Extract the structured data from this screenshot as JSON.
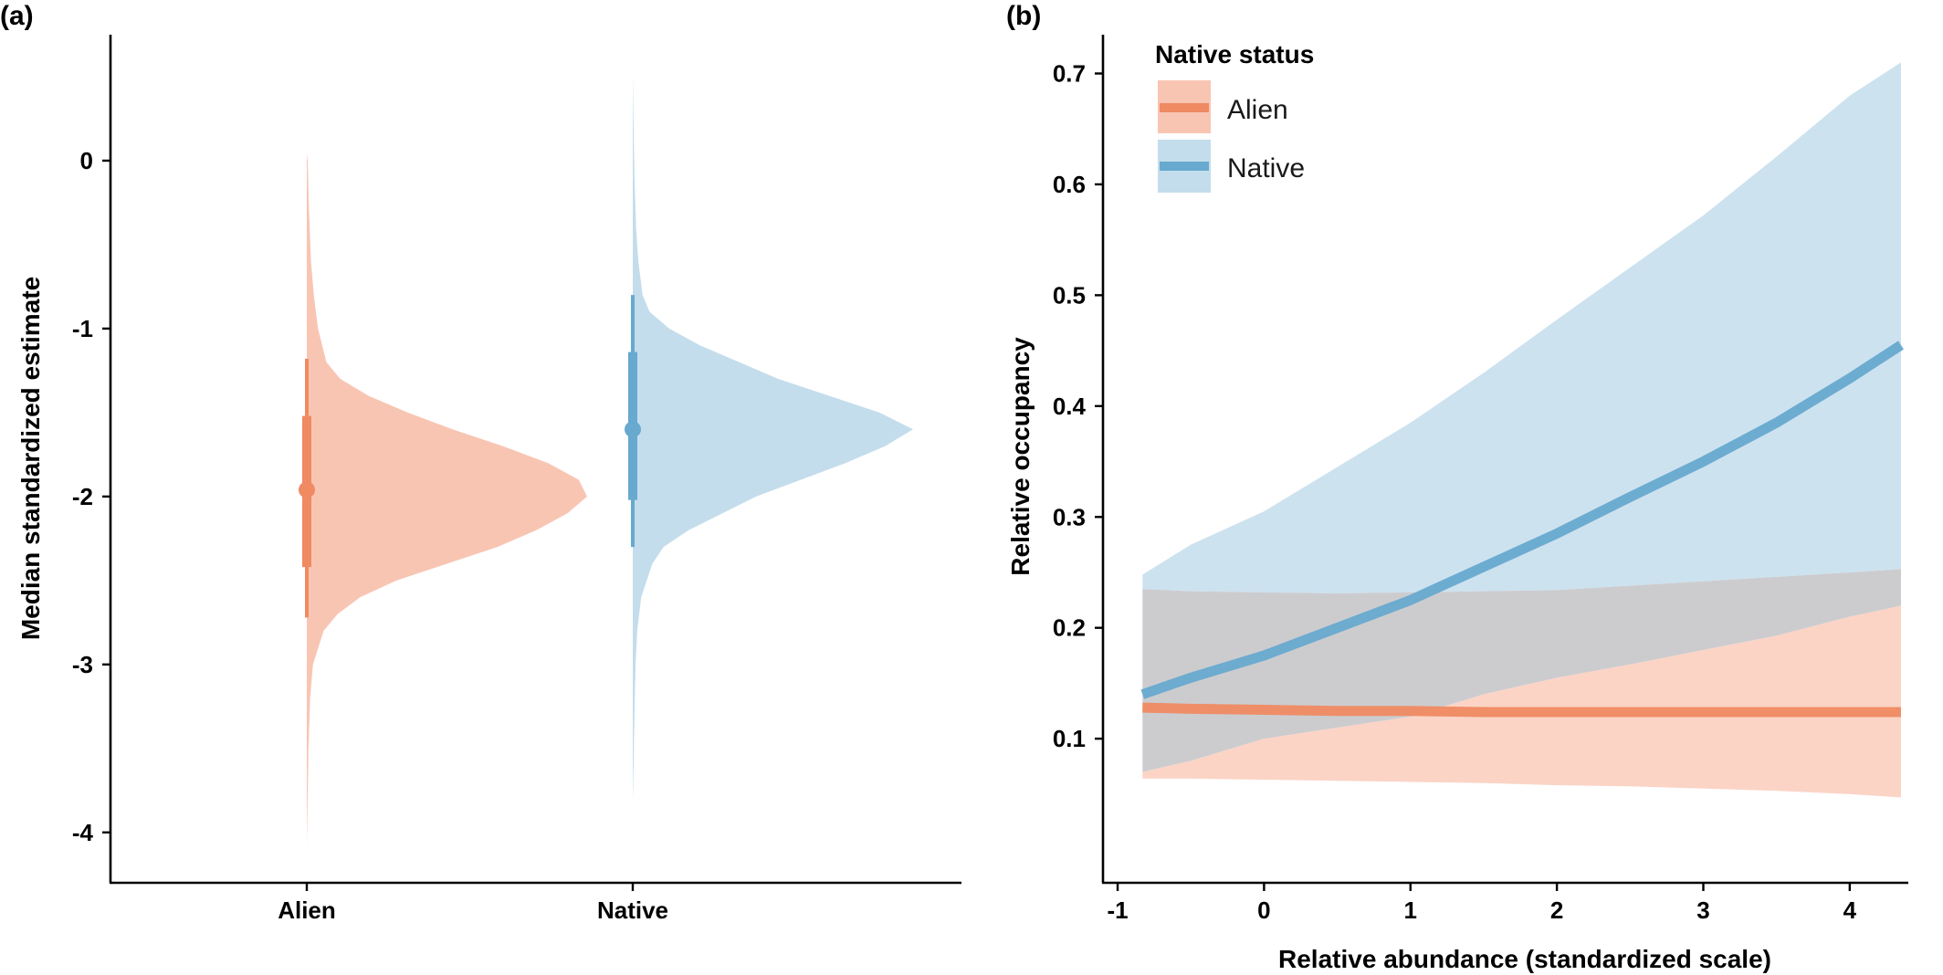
{
  "colors": {
    "alien": "#ef8a62",
    "alien_fill": "#f9c5b3",
    "native": "#67a9cf",
    "native_fill": "#c4ddec",
    "overlap": "#c9c9cc"
  },
  "chart_data": [
    {
      "panel": "(a)",
      "type": "violin",
      "xlabel": "",
      "ylabel": "Median standardized estimate",
      "ylim": [
        -4.3,
        0.75
      ],
      "yticks": [
        0,
        -1,
        -2,
        -3,
        -4
      ],
      "ytick_labels": [
        "0",
        "-1",
        "-2",
        "-3",
        "-4"
      ],
      "categories": [
        "Alien",
        "Native"
      ],
      "series": [
        {
          "name": "Alien",
          "median": -1.96,
          "interval_66": [
            -2.42,
            -1.52
          ],
          "interval_95": [
            -2.72,
            -1.18
          ],
          "range": [
            -4.08,
            0.04
          ],
          "density": [
            [
              -4.08,
              0.0
            ],
            [
              -3.8,
              0.003
            ],
            [
              -3.5,
              0.006
            ],
            [
              -3.2,
              0.012
            ],
            [
              -3.0,
              0.022
            ],
            [
              -2.8,
              0.06
            ],
            [
              -2.7,
              0.11
            ],
            [
              -2.6,
              0.19
            ],
            [
              -2.5,
              0.32
            ],
            [
              -2.4,
              0.5
            ],
            [
              -2.3,
              0.68
            ],
            [
              -2.2,
              0.82
            ],
            [
              -2.1,
              0.93
            ],
            [
              -2.0,
              1.0
            ],
            [
              -1.9,
              0.97
            ],
            [
              -1.8,
              0.86
            ],
            [
              -1.7,
              0.7
            ],
            [
              -1.6,
              0.52
            ],
            [
              -1.5,
              0.36
            ],
            [
              -1.4,
              0.22
            ],
            [
              -1.3,
              0.12
            ],
            [
              -1.2,
              0.07
            ],
            [
              -1.0,
              0.04
            ],
            [
              -0.8,
              0.025
            ],
            [
              -0.6,
              0.015
            ],
            [
              -0.3,
              0.008
            ],
            [
              0.0,
              0.003
            ],
            [
              0.04,
              0.0
            ]
          ]
        },
        {
          "name": "Native",
          "median": -1.6,
          "interval_66": [
            -2.02,
            -1.14
          ],
          "interval_95": [
            -2.3,
            -0.8
          ],
          "range": [
            -3.82,
            0.52
          ],
          "density": [
            [
              -3.82,
              0.0
            ],
            [
              -3.6,
              0.003
            ],
            [
              -3.3,
              0.006
            ],
            [
              -3.0,
              0.01
            ],
            [
              -2.8,
              0.016
            ],
            [
              -2.6,
              0.03
            ],
            [
              -2.4,
              0.07
            ],
            [
              -2.3,
              0.11
            ],
            [
              -2.2,
              0.2
            ],
            [
              -2.1,
              0.32
            ],
            [
              -2.0,
              0.44
            ],
            [
              -1.9,
              0.6
            ],
            [
              -1.8,
              0.76
            ],
            [
              -1.7,
              0.9
            ],
            [
              -1.6,
              1.0
            ],
            [
              -1.5,
              0.88
            ],
            [
              -1.4,
              0.7
            ],
            [
              -1.3,
              0.52
            ],
            [
              -1.2,
              0.38
            ],
            [
              -1.1,
              0.24
            ],
            [
              -1.0,
              0.13
            ],
            [
              -0.9,
              0.06
            ],
            [
              -0.8,
              0.035
            ],
            [
              -0.6,
              0.02
            ],
            [
              -0.4,
              0.012
            ],
            [
              -0.1,
              0.006
            ],
            [
              0.2,
              0.003
            ],
            [
              0.52,
              0.0
            ]
          ]
        }
      ]
    },
    {
      "panel": "(b)",
      "type": "line",
      "xlabel": "Relative abundance (standardized scale)",
      "ylabel": "Relative occupancy",
      "xlim": [
        -1.1,
        4.4
      ],
      "ylim": [
        -0.03,
        0.735
      ],
      "xticks": [
        -1,
        0,
        1,
        2,
        3,
        4
      ],
      "xtick_labels": [
        "-1",
        "0",
        "1",
        "2",
        "3",
        "4"
      ],
      "yticks": [
        0.1,
        0.2,
        0.3,
        0.4,
        0.5,
        0.6,
        0.7
      ],
      "ytick_labels": [
        "0.1",
        "0.2",
        "0.3",
        "0.4",
        "0.5",
        "0.6",
        "0.7"
      ],
      "legend": {
        "title": "Native status",
        "position": "top-left",
        "entries": [
          "Alien",
          "Native"
        ]
      },
      "x": [
        -0.83,
        -0.5,
        0,
        0.5,
        1,
        1.5,
        2,
        2.5,
        3,
        3.5,
        4,
        4.35
      ],
      "series": [
        {
          "name": "Alien",
          "y": [
            0.128,
            0.127,
            0.126,
            0.125,
            0.125,
            0.124,
            0.124,
            0.124,
            0.124,
            0.124,
            0.124,
            0.124
          ],
          "lower": [
            0.064,
            0.064,
            0.063,
            0.062,
            0.061,
            0.06,
            0.058,
            0.057,
            0.055,
            0.053,
            0.05,
            0.047
          ],
          "upper": [
            0.07,
            0.08,
            0.1,
            0.11,
            0.12,
            0.14,
            0.155,
            0.167,
            0.18,
            0.193,
            0.21,
            0.22
          ]
        },
        {
          "name": "Native",
          "y": [
            0.14,
            0.155,
            0.175,
            0.2,
            0.225,
            0.255,
            0.285,
            0.318,
            0.35,
            0.385,
            0.425,
            0.455
          ],
          "lower": [
            0.235,
            0.233,
            0.232,
            0.231,
            0.232,
            0.233,
            0.234,
            0.238,
            0.242,
            0.246,
            0.25,
            0.253
          ],
          "upper": [
            0.248,
            0.275,
            0.305,
            0.345,
            0.385,
            0.43,
            0.478,
            0.525,
            0.572,
            0.625,
            0.68,
            0.71
          ]
        }
      ]
    }
  ]
}
